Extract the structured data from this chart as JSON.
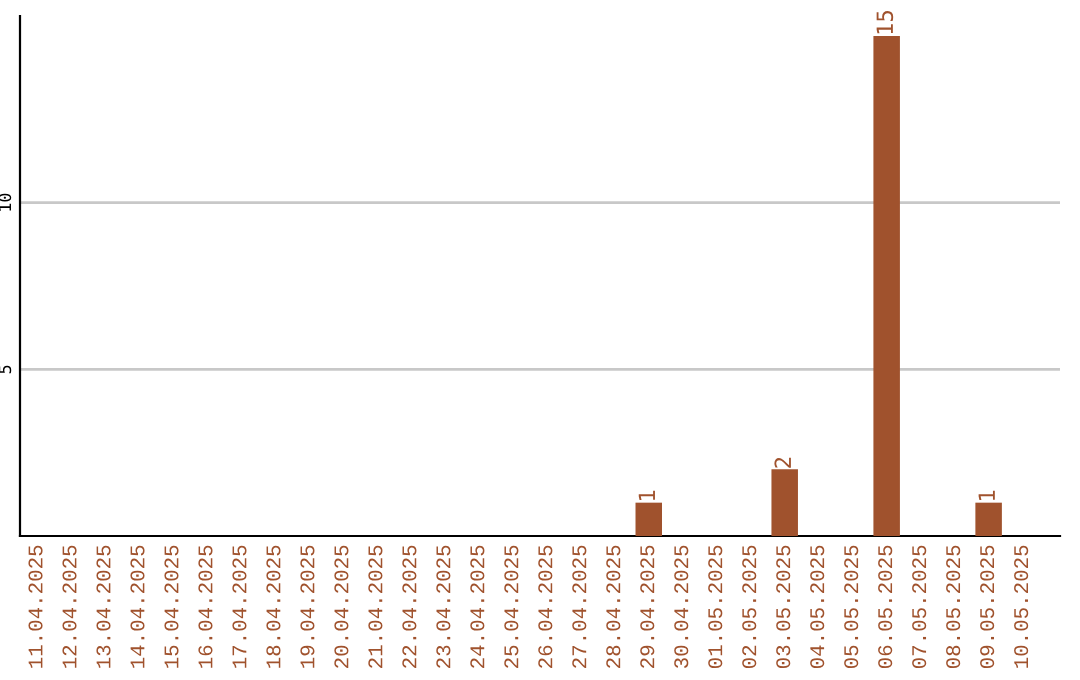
{
  "chart_data": {
    "type": "bar",
    "categories": [
      "11.04.2025",
      "12.04.2025",
      "13.04.2025",
      "14.04.2025",
      "15.04.2025",
      "16.04.2025",
      "17.04.2025",
      "18.04.2025",
      "19.04.2025",
      "20.04.2025",
      "21.04.2025",
      "22.04.2025",
      "23.04.2025",
      "24.04.2025",
      "25.04.2025",
      "26.04.2025",
      "27.04.2025",
      "28.04.2025",
      "29.04.2025",
      "30.04.2025",
      "01.05.2025",
      "02.05.2025",
      "03.05.2025",
      "04.05.2025",
      "05.05.2025",
      "06.05.2025",
      "07.05.2025",
      "08.05.2025",
      "09.05.2025",
      "10.05.2025"
    ],
    "values": [
      0,
      0,
      0,
      0,
      0,
      0,
      0,
      0,
      0,
      0,
      0,
      0,
      0,
      0,
      0,
      0,
      0,
      0,
      1,
      0,
      0,
      0,
      2,
      0,
      0,
      15,
      0,
      0,
      1,
      0
    ],
    "value_labels": [
      null,
      null,
      null,
      null,
      null,
      null,
      null,
      null,
      null,
      null,
      null,
      null,
      null,
      null,
      null,
      null,
      null,
      null,
      "1",
      null,
      null,
      null,
      "2",
      null,
      null,
      "15",
      null,
      null,
      "1",
      null
    ],
    "color": "#a0522d",
    "ylim": [
      0,
      15.6
    ],
    "yticks": [
      5,
      10
    ],
    "grid": "y"
  }
}
